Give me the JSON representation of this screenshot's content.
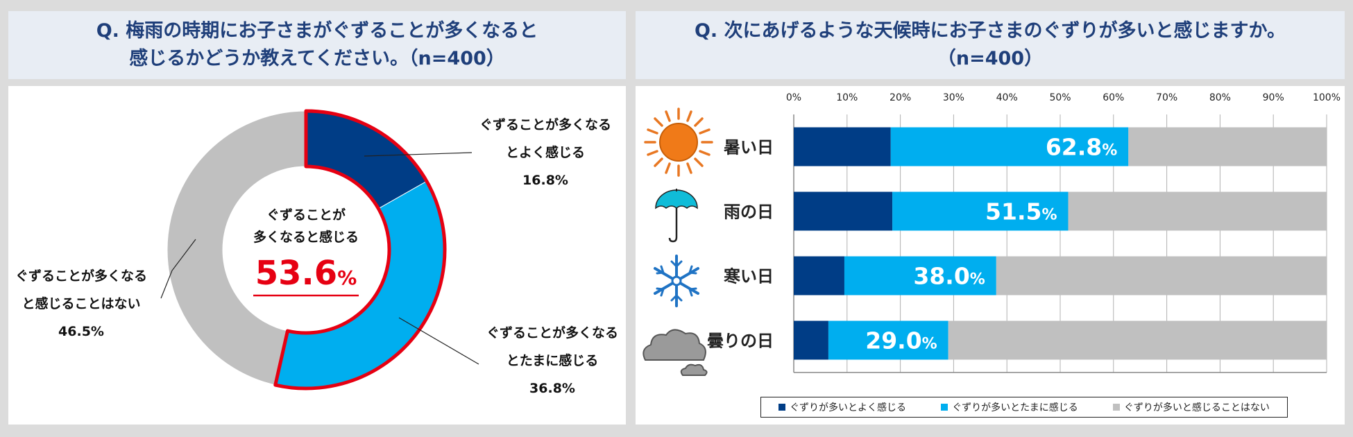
{
  "left": {
    "title_line1": "Q. 梅雨の時期にお子さまがぐずることが多くなると",
    "title_line2": "感じるかどうか教えてください。（n=400）",
    "center_line1": "ぐずることが",
    "center_line2": "多くなると感じる",
    "center_value": "53.6",
    "center_unit": "%",
    "labels": [
      {
        "line1": "ぐずることが多くなる",
        "line2": "とよく感じる",
        "pct": "16.8%"
      },
      {
        "line1": "ぐずることが多くなる",
        "line2": "とたまに感じる",
        "pct": "36.8%"
      },
      {
        "line1": "ぐずることが多くなる",
        "line2": "と感じることはない",
        "pct": "46.5%"
      }
    ]
  },
  "right": {
    "title_line1": "Q. 次にあげるような天候時にお子さまのぐずりが多いと感じますか。",
    "title_line2": "（n=400）",
    "legend": [
      "ぐずりが多いとよく感じる",
      "ぐずりが多いとたまに感じる",
      "ぐずりが多いと感じることはない"
    ]
  },
  "colors": {
    "dark_blue": "#003d86",
    "light_blue": "#00aeef",
    "gray": "#c0c0c0",
    "red": "#e60012"
  },
  "chart_data": [
    {
      "type": "pie",
      "variant": "donut",
      "title": "Q. 梅雨の時期にお子さまがぐずることが多くなると感じるかどうか教えてください。（n=400）",
      "categories": [
        "ぐずることが多くなるとよく感じる",
        "ぐずることが多くなるとたまに感じる",
        "ぐずることが多くなると感じることはない"
      ],
      "values": [
        16.8,
        36.8,
        46.5
      ],
      "highlight_total": 53.6
    },
    {
      "type": "bar",
      "orientation": "horizontal",
      "stacked": true,
      "title": "Q. 次にあげるような天候時にお子さまのぐずりが多いと感じますか。（n=400）",
      "categories": [
        "暑い日",
        "雨の日",
        "寒い日",
        "曇りの日"
      ],
      "series": [
        {
          "name": "ぐずりが多いとよく感じる",
          "values": [
            18.2,
            18.5,
            9.5,
            6.5
          ]
        },
        {
          "name": "ぐずりが多いとたまに感じる",
          "values": [
            44.6,
            33.0,
            28.5,
            22.5
          ]
        },
        {
          "name": "ぐずりが多いと感じることはない",
          "values": [
            37.2,
            48.5,
            62.0,
            71.0
          ]
        }
      ],
      "data_labels": [
        "62.8",
        "51.5",
        "38.0",
        "29.0"
      ],
      "data_label_unit": "%",
      "xlim": [
        0,
        100
      ],
      "xticks": [
        "0%",
        "10%",
        "20%",
        "30%",
        "40%",
        "50%",
        "60%",
        "70%",
        "80%",
        "90%",
        "100%"
      ],
      "legend_position": "bottom"
    }
  ]
}
